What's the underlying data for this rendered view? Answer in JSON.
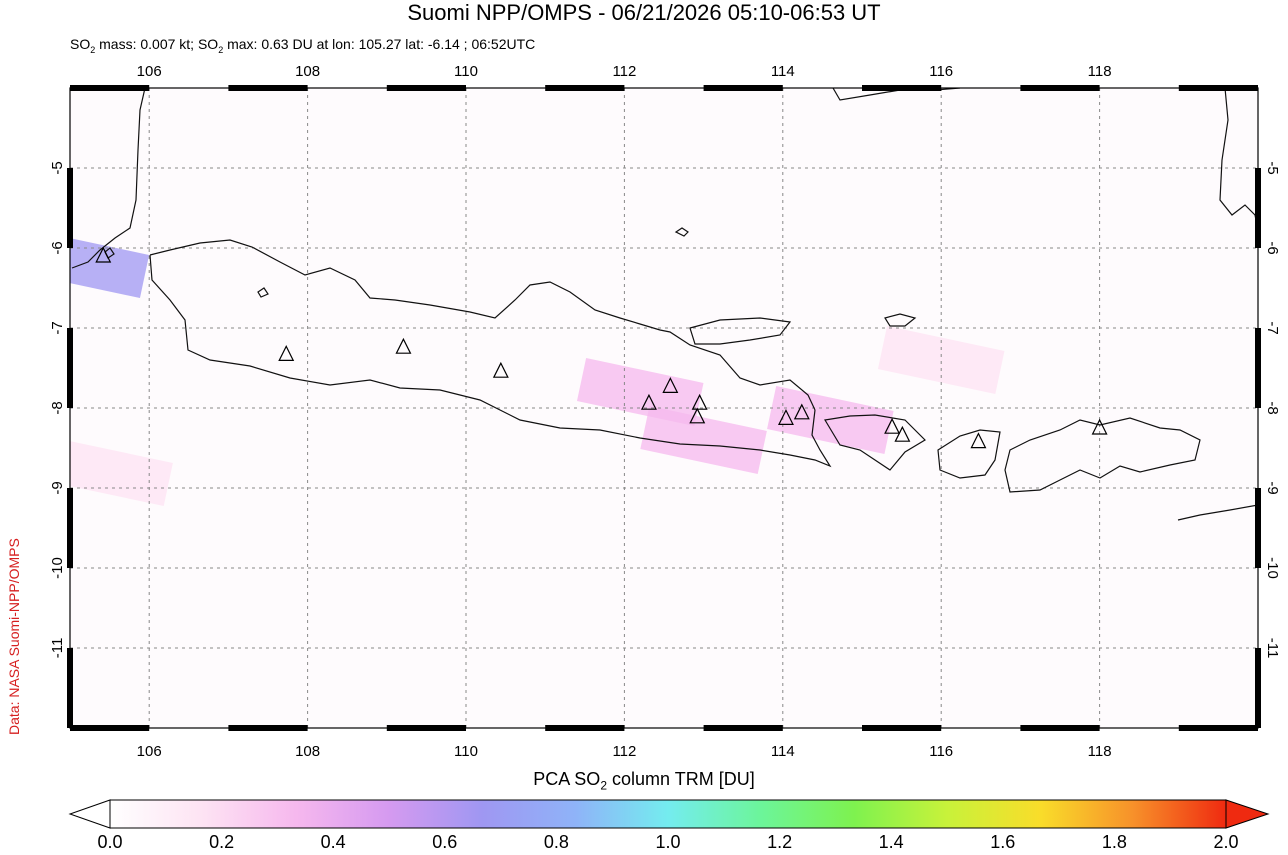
{
  "title": "Suomi NPP/OMPS - 06/21/2026 05:10-06:53 UT",
  "subtitle": {
    "mass_prefix": "SO",
    "mass_text": " mass: 0.007 kt; SO",
    "max_text": " max: 0.63 DU at lon: 105.27 lat: -6.14 ; 06:52UTC",
    "sub": "2"
  },
  "credit": "Data: NASA Suomi-NPP/OMPS",
  "colorbar": {
    "label_prefix": "PCA SO",
    "label_sub": "2",
    "label_suffix": " column TRM [DU]",
    "ticks": [
      "0.0",
      "0.2",
      "0.4",
      "0.6",
      "0.8",
      "1.0",
      "1.2",
      "1.4",
      "1.6",
      "1.8",
      "2.0"
    ],
    "colors": [
      "#ffffff",
      "#fde3f3",
      "#f6b8ee",
      "#d59af0",
      "#9f97f2",
      "#8fb3f8",
      "#74ecef",
      "#6cf59a",
      "#7ef24f",
      "#c8f23a",
      "#f9dd2a",
      "#f7912a",
      "#ef2a10"
    ]
  },
  "map": {
    "lon_ticks": [
      "106",
      "108",
      "110",
      "112",
      "114",
      "116",
      "118"
    ],
    "lat_ticks": [
      "-5",
      "-6",
      "-7",
      "-8",
      "-9",
      "-10",
      "-11"
    ],
    "lon_range": [
      105.0,
      120.0
    ],
    "lat_range": [
      -12.0,
      -4.0
    ],
    "volcanoes": [
      {
        "name": "Krakatau",
        "lon": 105.42,
        "lat": -6.1
      },
      {
        "name": "Tangkuban Parahu",
        "lon": 107.73,
        "lat": -7.33
      },
      {
        "name": "Slamet",
        "lon": 109.21,
        "lat": -7.24
      },
      {
        "name": "Merapi",
        "lon": 110.44,
        "lat": -7.54
      },
      {
        "name": "Kelut",
        "lon": 112.31,
        "lat": -7.94
      },
      {
        "name": "Arjuno-Welirang",
        "lon": 112.58,
        "lat": -7.73
      },
      {
        "name": "Bromo",
        "lon": 112.95,
        "lat": -7.94
      },
      {
        "name": "Semeru",
        "lon": 112.92,
        "lat": -8.11
      },
      {
        "name": "Raung",
        "lon": 114.04,
        "lat": -8.13
      },
      {
        "name": "Ijen",
        "lon": 114.24,
        "lat": -8.06
      },
      {
        "name": "Batur",
        "lon": 115.38,
        "lat": -8.24
      },
      {
        "name": "Agung",
        "lon": 115.51,
        "lat": -8.34
      },
      {
        "name": "Rinjani",
        "lon": 116.47,
        "lat": -8.42
      },
      {
        "name": "Tambora",
        "lon": 118.0,
        "lat": -8.25
      }
    ],
    "so2_patches": [
      {
        "lon": 105.2,
        "lat": -6.2,
        "value": 0.63
      },
      {
        "lon": 112.2,
        "lat": -7.8,
        "value": 0.3
      },
      {
        "lon": 113.0,
        "lat": -8.4,
        "value": 0.28
      },
      {
        "lon": 114.6,
        "lat": -8.15,
        "value": 0.25
      },
      {
        "lon": 116.0,
        "lat": -7.4,
        "value": 0.18
      },
      {
        "lon": 105.5,
        "lat": -8.8,
        "value": 0.15
      }
    ]
  }
}
